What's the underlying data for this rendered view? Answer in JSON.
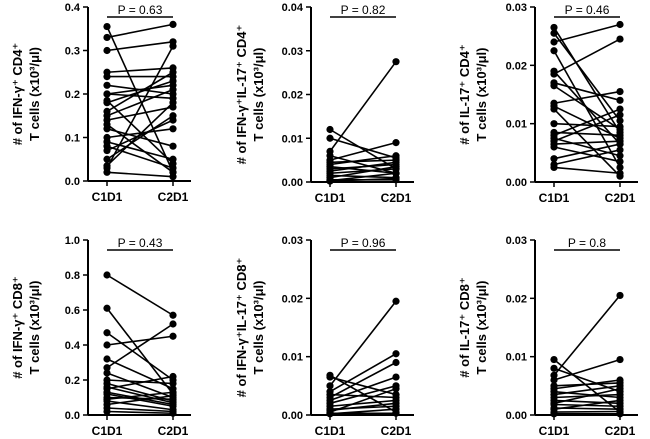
{
  "chart_data": [
    {
      "type": "line",
      "ylabel_lines": [
        "# of IFN-γ⁺ CD4⁺",
        "T cells (x10³/μl)"
      ],
      "categories": [
        "C1D1",
        "C2D1"
      ],
      "ylim": [
        0,
        0.4
      ],
      "yticks": [
        "0.0",
        "0.1",
        "0.2",
        "0.3",
        "0.4"
      ],
      "pvalue": "P = 0.63",
      "pairs": [
        [
          0.355,
          0.02
        ],
        [
          0.33,
          0.36
        ],
        [
          0.3,
          0.32
        ],
        [
          0.25,
          0.26
        ],
        [
          0.24,
          0.24
        ],
        [
          0.22,
          0.2
        ],
        [
          0.2,
          0.22
        ],
        [
          0.2,
          0.19
        ],
        [
          0.185,
          0.04
        ],
        [
          0.18,
          0.23
        ],
        [
          0.16,
          0.25
        ],
        [
          0.15,
          0.21
        ],
        [
          0.14,
          0.17
        ],
        [
          0.13,
          0.02
        ],
        [
          0.12,
          0.08
        ],
        [
          0.1,
          0.12
        ],
        [
          0.09,
          0.05
        ],
        [
          0.08,
          0.03
        ],
        [
          0.07,
          0.14
        ],
        [
          0.05,
          0.15
        ],
        [
          0.035,
          0.18
        ],
        [
          0.03,
          0.31
        ],
        [
          0.02,
          0.01
        ]
      ]
    },
    {
      "type": "line",
      "ylabel_lines": [
        "# of IFN-γ⁺IL-17⁺ CD4⁺",
        "T cells (x10³/μl)"
      ],
      "categories": [
        "C1D1",
        "C2D1"
      ],
      "ylim": [
        0,
        0.04
      ],
      "yticks": [
        "0.00",
        "0.01",
        "0.02",
        "0.03",
        "0.04"
      ],
      "pvalue": "P = 0.82",
      "pairs": [
        [
          0.012,
          0.003
        ],
        [
          0.01,
          0.0055
        ],
        [
          0.007,
          0.0275
        ],
        [
          0.006,
          0.002
        ],
        [
          0.005,
          0.009
        ],
        [
          0.0045,
          0.005
        ],
        [
          0.004,
          0.006
        ],
        [
          0.0035,
          0.002
        ],
        [
          0.003,
          0.004
        ],
        [
          0.0025,
          0.0045
        ],
        [
          0.002,
          0.003
        ],
        [
          0.0015,
          0.001
        ],
        [
          0.001,
          0.0035
        ],
        [
          0.0005,
          0.0005
        ],
        [
          0.0003,
          0.002
        ],
        [
          0.0002,
          0.0008
        ]
      ]
    },
    {
      "type": "line",
      "ylabel_lines": [
        "# of IL-17⁺ CD4⁺",
        "T cells (x10³/μl)"
      ],
      "categories": [
        "C1D1",
        "C2D1"
      ],
      "ylim": [
        0,
        0.03
      ],
      "yticks": [
        "0.00",
        "0.01",
        "0.02",
        "0.03"
      ],
      "pvalue": "P = 0.46",
      "pairs": [
        [
          0.0265,
          0.0085
        ],
        [
          0.0255,
          0.0105
        ],
        [
          0.024,
          0.027
        ],
        [
          0.0225,
          0.0025
        ],
        [
          0.019,
          0.0065
        ],
        [
          0.0185,
          0.0245
        ],
        [
          0.017,
          0.014
        ],
        [
          0.0165,
          0.009
        ],
        [
          0.0135,
          0.0155
        ],
        [
          0.013,
          0.0075
        ],
        [
          0.0125,
          0.001
        ],
        [
          0.01,
          0.0095
        ],
        [
          0.0085,
          0.008
        ],
        [
          0.008,
          0.0125
        ],
        [
          0.0075,
          0.0045
        ],
        [
          0.007,
          0.0115
        ],
        [
          0.0065,
          0.007
        ],
        [
          0.006,
          0.0035
        ],
        [
          0.004,
          0.0065
        ],
        [
          0.003,
          0.0055
        ],
        [
          0.0025,
          0.0015
        ]
      ]
    },
    {
      "type": "line",
      "ylabel_lines": [
        "# of IFN-γ⁺ CD8⁺",
        "T cells (x10³/μl)"
      ],
      "categories": [
        "C1D1",
        "C2D1"
      ],
      "ylim": [
        0,
        1.0
      ],
      "yticks": [
        "0.0",
        "0.2",
        "0.4",
        "0.6",
        "0.8",
        "1.0"
      ],
      "pvalue": "P = 0.43",
      "pairs": [
        [
          0.8,
          0.57
        ],
        [
          0.61,
          0.12
        ],
        [
          0.47,
          0.2
        ],
        [
          0.4,
          0.45
        ],
        [
          0.32,
          0.15
        ],
        [
          0.27,
          0.52
        ],
        [
          0.24,
          0.1
        ],
        [
          0.2,
          0.18
        ],
        [
          0.18,
          0.08
        ],
        [
          0.16,
          0.07
        ],
        [
          0.15,
          0.22
        ],
        [
          0.13,
          0.06
        ],
        [
          0.12,
          0.05
        ],
        [
          0.1,
          0.09
        ],
        [
          0.09,
          0.13
        ],
        [
          0.08,
          0.03
        ],
        [
          0.06,
          0.11
        ],
        [
          0.04,
          0.02
        ],
        [
          0.02,
          0.01
        ]
      ]
    },
    {
      "type": "line",
      "ylabel_lines": [
        "# of IFN-γ⁺IL-17⁺ CD8⁺",
        "T cells (x10³/μl)"
      ],
      "categories": [
        "C1D1",
        "C2D1"
      ],
      "ylim": [
        0,
        0.03
      ],
      "yticks": [
        "0.00",
        "0.01",
        "0.02",
        "0.03"
      ],
      "pvalue": "P = 0.96",
      "pairs": [
        [
          0.0068,
          0.0005
        ],
        [
          0.0065,
          0.0035
        ],
        [
          0.005,
          0.0195
        ],
        [
          0.004,
          0.0105
        ],
        [
          0.0035,
          0.003
        ],
        [
          0.003,
          0.009
        ],
        [
          0.0025,
          0.0065
        ],
        [
          0.002,
          0.005
        ],
        [
          0.0015,
          0.0025
        ],
        [
          0.001,
          0.0015
        ],
        [
          0.0008,
          0.002
        ],
        [
          0.0005,
          0.0045
        ],
        [
          0.0003,
          0.0003
        ],
        [
          0.0002,
          0.001
        ]
      ]
    },
    {
      "type": "line",
      "ylabel_lines": [
        "# of IL-17⁺ CD8⁺",
        "T cells (x10³/μl)"
      ],
      "categories": [
        "C1D1",
        "C2D1"
      ],
      "ylim": [
        0,
        0.03
      ],
      "yticks": [
        "0.00",
        "0.01",
        "0.02",
        "0.03"
      ],
      "pvalue": "P = 0.8",
      "pairs": [
        [
          0.0095,
          0.0005
        ],
        [
          0.008,
          0.004
        ],
        [
          0.0068,
          0.0205
        ],
        [
          0.006,
          0.0095
        ],
        [
          0.005,
          0.0055
        ],
        [
          0.0045,
          0.006
        ],
        [
          0.004,
          0.003
        ],
        [
          0.0035,
          0.005
        ],
        [
          0.003,
          0.0035
        ],
        [
          0.0025,
          0.002
        ],
        [
          0.002,
          0.0045
        ],
        [
          0.0018,
          0.0015
        ],
        [
          0.0012,
          0.001
        ],
        [
          0.001,
          0.0025
        ],
        [
          0.0005,
          0.0006
        ],
        [
          0.0002,
          0.0002
        ]
      ]
    }
  ]
}
